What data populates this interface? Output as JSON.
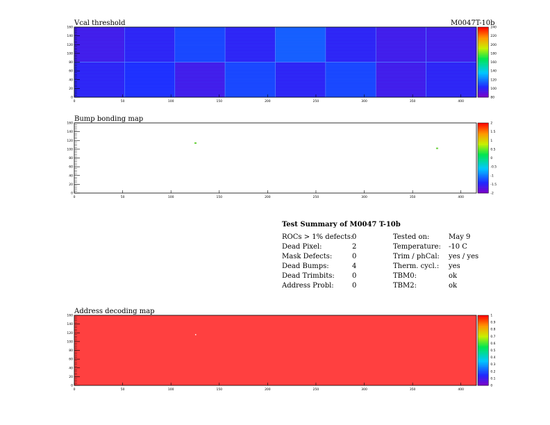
{
  "header": {
    "module_label": "M0047T-10b"
  },
  "chart_data": [
    {
      "type": "heatmap",
      "title": "Vcal threshold",
      "xlim": [
        0,
        416
      ],
      "ylim": [
        0,
        160
      ],
      "x_ticks": [
        "0",
        "50",
        "100",
        "150",
        "200",
        "250",
        "300",
        "350",
        "400"
      ],
      "y_ticks": [
        "0",
        "20",
        "40",
        "60",
        "80",
        "100",
        "120",
        "140",
        "160"
      ],
      "colorbar": {
        "min": 80,
        "max": 240,
        "ticks": [
          "80",
          "100",
          "120",
          "140",
          "160",
          "180",
          "200",
          "220",
          "240"
        ]
      },
      "roc_grid": {
        "columns": 8,
        "rows": 2
      },
      "roc_mean_values": [
        [
          95,
          100,
          110,
          100,
          115,
          100,
          95,
          95
        ],
        [
          100,
          105,
          95,
          110,
          100,
          110,
          95,
          100
        ]
      ]
    },
    {
      "type": "heatmap",
      "title": "Bump bonding map",
      "xlim": [
        0,
        416
      ],
      "ylim": [
        0,
        160
      ],
      "x_ticks": [
        "0",
        "50",
        "100",
        "150",
        "200",
        "250",
        "300",
        "350",
        "400"
      ],
      "y_ticks": [
        "0",
        "20",
        "40",
        "60",
        "80",
        "100",
        "120",
        "140",
        "160"
      ],
      "colorbar": {
        "min": -2,
        "max": 2,
        "ticks": [
          "-2",
          "-1.5",
          "-1",
          "-0.5",
          "0",
          "0.5",
          "1",
          "1.5",
          "2"
        ]
      },
      "flagged_pixels": [
        {
          "x": 125,
          "y": 114,
          "value": 1
        },
        {
          "x": 375,
          "y": 102,
          "value": 1
        }
      ]
    },
    {
      "type": "heatmap",
      "title": "Address decoding map",
      "xlim": [
        0,
        416
      ],
      "ylim": [
        0,
        160
      ],
      "x_ticks": [
        "0",
        "50",
        "100",
        "150",
        "200",
        "250",
        "300",
        "350",
        "400"
      ],
      "y_ticks": [
        "0",
        "20",
        "40",
        "60",
        "80",
        "100",
        "120",
        "140",
        "160"
      ],
      "colorbar": {
        "min": 0,
        "max": 1,
        "ticks": [
          "0",
          "0.1",
          "0.2",
          "0.3",
          "0.4",
          "0.5",
          "0.6",
          "0.7",
          "0.8",
          "0.9",
          "1"
        ]
      },
      "fill_value": 1,
      "dead_pixels": [
        {
          "x": 125,
          "y": 117
        }
      ]
    }
  ],
  "summary": {
    "title": "Test Summary of M0047     T-10b",
    "left": [
      {
        "label": "ROCs > 1% defects:",
        "value": "0"
      },
      {
        "label": "Dead Pixel:",
        "value": "2"
      },
      {
        "label": "Mask Defects:",
        "value": "0"
      },
      {
        "label": "Dead Bumps:",
        "value": "4"
      },
      {
        "label": "Dead Trimbits:",
        "value": "0"
      },
      {
        "label": "Address Probl:",
        "value": "0"
      }
    ],
    "right": [
      {
        "label": "Tested on:",
        "value": "May 9"
      },
      {
        "label": "Temperature:",
        "value": "-10 C"
      },
      {
        "label": "Trim / phCal:",
        "value": "yes / yes"
      },
      {
        "label": "Therm. cycl.:",
        "value": "yes"
      },
      {
        "label": "TBM0:",
        "value": "ok"
      },
      {
        "label": "TBM2:",
        "value": "ok"
      }
    ]
  }
}
